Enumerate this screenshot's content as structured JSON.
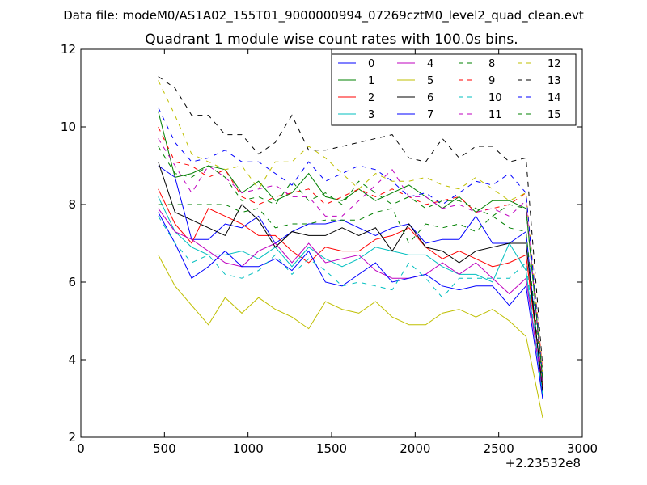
{
  "chart_data": {
    "type": "line",
    "suptitle": "Data file: modeM0/AS1A02_155T01_9000000994_07269cztM0_level2_quad_clean.evt",
    "title": "Quadrant 1 module wise count rates with 100.0s bins.",
    "xlabel": "",
    "ylabel": "",
    "x_offset_label": "+2.23532e8",
    "xlim": [
      0,
      3000
    ],
    "ylim": [
      2,
      12
    ],
    "xticks": [
      0,
      500,
      1000,
      1500,
      2000,
      2500,
      3000
    ],
    "yticks": [
      2,
      4,
      6,
      8,
      10,
      12
    ],
    "x": [
      463,
      563,
      663,
      763,
      863,
      963,
      1063,
      1163,
      1263,
      1363,
      1463,
      1563,
      1663,
      1763,
      1863,
      1963,
      2063,
      2163,
      2263,
      2363,
      2463,
      2563,
      2663,
      2763
    ],
    "legend_position": "upper right",
    "series": [
      {
        "name": "0",
        "color": "#0000ff",
        "dash": "solid",
        "values": [
          9.0,
          8.7,
          7.1,
          7.1,
          7.5,
          7.4,
          7.7,
          7.0,
          7.3,
          7.5,
          7.5,
          7.6,
          7.4,
          7.2,
          7.4,
          7.5,
          7.0,
          7.1,
          7.1,
          7.7,
          7.0,
          7.0,
          7.3,
          3.0
        ]
      },
      {
        "name": "1",
        "color": "#008000",
        "dash": "solid",
        "values": [
          10.4,
          8.7,
          8.8,
          9.0,
          8.9,
          8.3,
          8.6,
          8.1,
          8.3,
          8.8,
          8.2,
          8.1,
          8.4,
          8.1,
          8.3,
          8.5,
          8.2,
          7.9,
          8.2,
          7.8,
          8.1,
          8.1,
          7.9,
          3.5
        ]
      },
      {
        "name": "2",
        "color": "#ff0000",
        "dash": "solid",
        "values": [
          8.4,
          7.5,
          7.0,
          7.9,
          7.7,
          7.5,
          7.2,
          7.2,
          6.8,
          6.5,
          6.9,
          6.8,
          6.8,
          7.1,
          7.2,
          7.4,
          6.9,
          6.6,
          6.8,
          6.6,
          6.4,
          6.5,
          6.7,
          3.3
        ]
      },
      {
        "name": "3",
        "color": "#00bfbf",
        "dash": "solid",
        "values": [
          8.2,
          7.3,
          6.9,
          6.7,
          6.7,
          6.8,
          6.6,
          6.9,
          6.4,
          6.9,
          6.6,
          6.4,
          6.6,
          6.9,
          6.8,
          6.7,
          6.7,
          6.4,
          6.2,
          6.2,
          6.0,
          7.0,
          6.3,
          3.1
        ]
      },
      {
        "name": "4",
        "color": "#bf00bf",
        "dash": "solid",
        "values": [
          7.9,
          7.3,
          7.1,
          6.8,
          6.5,
          6.4,
          6.8,
          7.0,
          6.5,
          7.0,
          6.5,
          6.6,
          6.7,
          6.3,
          6.1,
          6.1,
          6.2,
          6.5,
          6.2,
          6.5,
          6.1,
          5.7,
          6.1,
          3.2
        ]
      },
      {
        "name": "5",
        "color": "#bfbf00",
        "dash": "solid",
        "values": [
          6.7,
          5.9,
          5.4,
          4.9,
          5.6,
          5.2,
          5.6,
          5.3,
          5.1,
          4.8,
          5.5,
          5.3,
          5.2,
          5.5,
          5.1,
          4.9,
          4.9,
          5.2,
          5.3,
          5.1,
          5.3,
          5.0,
          4.6,
          2.5
        ]
      },
      {
        "name": "6",
        "color": "#000000",
        "dash": "solid",
        "values": [
          9.1,
          7.8,
          7.6,
          7.4,
          7.2,
          8.0,
          7.6,
          6.9,
          7.3,
          7.2,
          7.2,
          7.4,
          7.2,
          7.4,
          6.8,
          7.5,
          6.9,
          6.8,
          6.5,
          6.8,
          6.9,
          7.0,
          7.0,
          3.2
        ]
      },
      {
        "name": "7",
        "color": "#0000ff",
        "dash": "solid",
        "values": [
          7.8,
          7.0,
          6.1,
          6.4,
          6.8,
          6.4,
          6.4,
          6.6,
          6.3,
          6.8,
          6.0,
          5.9,
          6.2,
          6.5,
          6.0,
          6.1,
          6.2,
          5.9,
          5.8,
          5.9,
          5.9,
          5.4,
          5.9,
          3.0
        ]
      },
      {
        "name": "8",
        "color": "#008000",
        "dash": "dashed",
        "values": [
          8.0,
          8.0,
          8.0,
          8.0,
          8.0,
          7.8,
          7.9,
          7.4,
          7.5,
          7.5,
          7.6,
          7.6,
          7.6,
          7.8,
          7.9,
          7.0,
          7.5,
          7.4,
          7.5,
          7.3,
          7.7,
          7.4,
          7.3,
          3.4
        ]
      },
      {
        "name": "9",
        "color": "#ff0000",
        "dash": "dashed",
        "values": [
          10.0,
          9.1,
          9.0,
          8.7,
          8.9,
          8.2,
          8.0,
          8.2,
          8.3,
          8.4,
          8.0,
          8.2,
          8.4,
          8.2,
          8.4,
          8.2,
          8.0,
          8.1,
          8.2,
          7.8,
          7.9,
          8.0,
          8.3,
          3.7
        ]
      },
      {
        "name": "10",
        "color": "#00bfbf",
        "dash": "dashed",
        "values": [
          7.7,
          7.0,
          6.5,
          6.7,
          6.2,
          6.1,
          6.3,
          6.7,
          6.2,
          6.6,
          6.3,
          5.9,
          6.0,
          5.9,
          5.8,
          6.5,
          6.1,
          5.6,
          6.1,
          6.1,
          6.1,
          6.1,
          6.5,
          3.1
        ]
      },
      {
        "name": "11",
        "color": "#bf00bf",
        "dash": "dashed",
        "values": [
          9.7,
          9.0,
          8.3,
          9.0,
          8.7,
          8.3,
          8.4,
          8.5,
          8.2,
          8.2,
          7.7,
          7.7,
          8.1,
          8.5,
          8.9,
          8.2,
          8.2,
          7.9,
          8.0,
          7.8,
          7.9,
          7.7,
          8.1,
          3.3
        ]
      },
      {
        "name": "12",
        "color": "#bfbf00",
        "dash": "dashed",
        "values": [
          11.2,
          10.3,
          9.3,
          9.1,
          8.9,
          9.0,
          8.4,
          9.1,
          9.1,
          9.5,
          9.2,
          8.8,
          8.4,
          8.8,
          8.6,
          8.6,
          8.7,
          8.5,
          8.4,
          8.7,
          8.4,
          8.1,
          8.3,
          3.6
        ]
      },
      {
        "name": "13",
        "color": "#000000",
        "dash": "dashed",
        "values": [
          11.3,
          11.0,
          10.3,
          10.3,
          9.8,
          9.8,
          9.3,
          9.6,
          10.3,
          9.4,
          9.4,
          9.5,
          9.6,
          9.7,
          9.8,
          9.2,
          9.1,
          9.7,
          9.2,
          9.5,
          9.5,
          9.1,
          9.2,
          3.8
        ]
      },
      {
        "name": "14",
        "color": "#0000ff",
        "dash": "dashed",
        "values": [
          10.5,
          9.6,
          9.1,
          9.2,
          9.4,
          9.1,
          9.1,
          8.8,
          8.5,
          9.1,
          8.6,
          8.8,
          9.0,
          8.9,
          8.6,
          8.2,
          8.3,
          8.0,
          8.3,
          8.6,
          8.5,
          8.8,
          8.3,
          3.5
        ]
      },
      {
        "name": "15",
        "color": "#008000",
        "dash": "dashed",
        "values": [
          9.5,
          8.8,
          8.7,
          9.0,
          8.7,
          8.1,
          8.2,
          8.0,
          8.6,
          8.1,
          8.3,
          8.0,
          8.6,
          8.3,
          8.0,
          8.2,
          7.9,
          8.1,
          8.1,
          7.9,
          7.7,
          8.0,
          7.9,
          3.5
        ]
      }
    ]
  }
}
